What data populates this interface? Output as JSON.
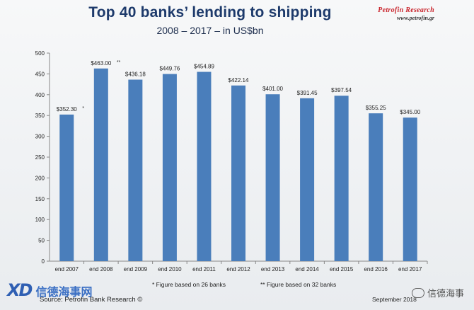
{
  "header": {
    "title": "Top 40 banks’ lending to shipping",
    "subtitle": "2008 – 2017 – in US$bn"
  },
  "brand": {
    "name": "Petrofin Research",
    "web": "www.petrofin.gr",
    "color": "#c9252c"
  },
  "chart_data": {
    "type": "bar",
    "categories": [
      "end 2007",
      "end 2008",
      "end 2009",
      "end 2010",
      "end 2011",
      "end 2012",
      "end 2013",
      "end 2014",
      "end 2015",
      "end 2016",
      "end 2017"
    ],
    "values": [
      352.3,
      463.0,
      436.18,
      449.76,
      454.89,
      422.14,
      401.0,
      391.45,
      397.54,
      355.25,
      345.0
    ],
    "value_labels": [
      "$352.30",
      "$463.00",
      "$436.18",
      "$449.76",
      "$454.89",
      "$422.14",
      "$401.00",
      "$391.45",
      "$397.54",
      "$355.25",
      "$345.00"
    ],
    "label_marks": [
      "*",
      "**",
      "",
      "",
      "",
      "",
      "",
      "",
      "",
      "",
      ""
    ],
    "ylim": [
      0,
      500
    ],
    "yticks": [
      "0",
      "50",
      "100",
      "150",
      "200",
      "250",
      "300",
      "350",
      "400",
      "450",
      "500"
    ],
    "grid": false,
    "bar_color": "#4a7ebb",
    "title": "Top 40 banks’ lending to shipping",
    "xlabel": "",
    "ylabel": ""
  },
  "footnotes": {
    "note1": "* Figure based on 26 banks",
    "note2": "** Figure based on 32 banks"
  },
  "source": "Source: Petrofin Bank Research ©",
  "date": "September 2018",
  "watermarks": {
    "left_logo": "XD",
    "left_text": "信德海事网",
    "right_text": "信德海事"
  }
}
